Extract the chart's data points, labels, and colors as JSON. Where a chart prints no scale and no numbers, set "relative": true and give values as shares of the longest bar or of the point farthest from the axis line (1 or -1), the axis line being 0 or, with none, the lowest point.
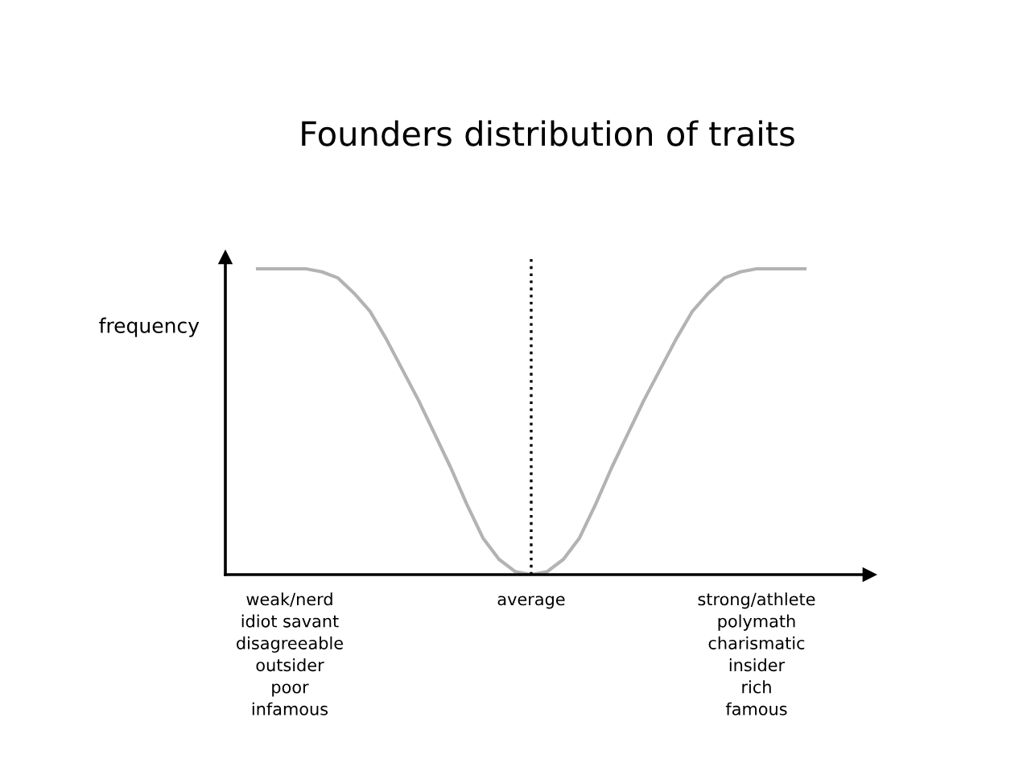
{
  "chart_data": {
    "type": "line",
    "relative": true,
    "title": "Founders distribution of traits",
    "ylabel": "frequency",
    "categories": [
      null,
      null,
      null,
      null,
      "weak/nerd\nidiot savant\ndisagreeable\noutsider\npoor\ninfamous",
      null,
      null,
      null,
      null,
      null,
      null,
      null,
      null,
      null,
      null,
      null,
      null,
      null,
      null,
      "average",
      null,
      null,
      null,
      null,
      null,
      null,
      null,
      null,
      null,
      null,
      null,
      null,
      null,
      "strong/athlete\npolymath\ncharismatic\ninsider\nrich\nfamous",
      null,
      null,
      null,
      null,
      null,
      null,
      null
    ],
    "series": [
      {
        "color": "#b3b3b3",
        "values": [
          null,
          null,
          1,
          1,
          1,
          1,
          0.99,
          0.97,
          0.92,
          0.86,
          0.77,
          0.67,
          0.57,
          0.46,
          0.35,
          0.23,
          0.12,
          0.05,
          0.01,
          0,
          0.01,
          0.05,
          0.12,
          0.23,
          0.35,
          0.46,
          0.57,
          0.67,
          0.77,
          0.86,
          0.92,
          0.97,
          0.99,
          1,
          1,
          1,
          1,
          null,
          null,
          null,
          null
        ]
      }
    ],
    "ref_lines": [
      {
        "axis": "x",
        "value": "average",
        "color": "#000000",
        "line_style": "dotted"
      }
    ],
    "grid": false,
    "legend": false,
    "marker": "none",
    "line_style": "solid"
  }
}
